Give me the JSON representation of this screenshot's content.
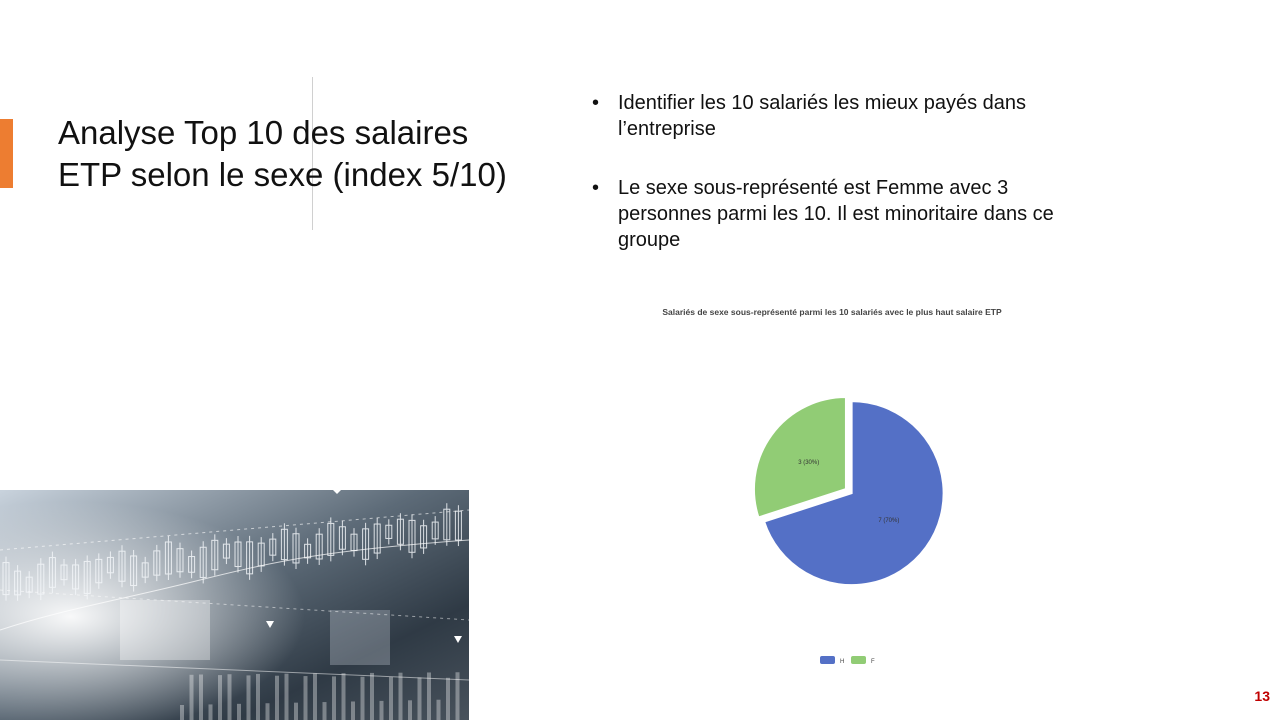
{
  "slide": {
    "title": "Analyse Top 10 des salaires ETP selon le sexe (index 5/10)",
    "bullets": [
      "Identifier les 10 salariés les mieux payés dans l’entreprise",
      "Le sexe sous-représenté est Femme avec 3 personnes parmi les 10. Il est minoritaire dans ce groupe"
    ],
    "page_number": "13",
    "accent_color": "#ED7D31",
    "image": {
      "icon": "stock-market-candlestick-photo"
    }
  },
  "chart_data": {
    "type": "pie",
    "title": "Salariés de sexe sous-représenté parmi les 10 salariés avec le plus haut salaire ETP",
    "slices": [
      {
        "label": "H",
        "value": 7,
        "data_label": "7 (70%)",
        "color": "#5470C6"
      },
      {
        "label": "F",
        "value": 3,
        "data_label": "3 (30%)",
        "color": "#91CC75"
      }
    ],
    "legend": {
      "position": "bottom",
      "entries": [
        "H",
        "F"
      ]
    }
  }
}
